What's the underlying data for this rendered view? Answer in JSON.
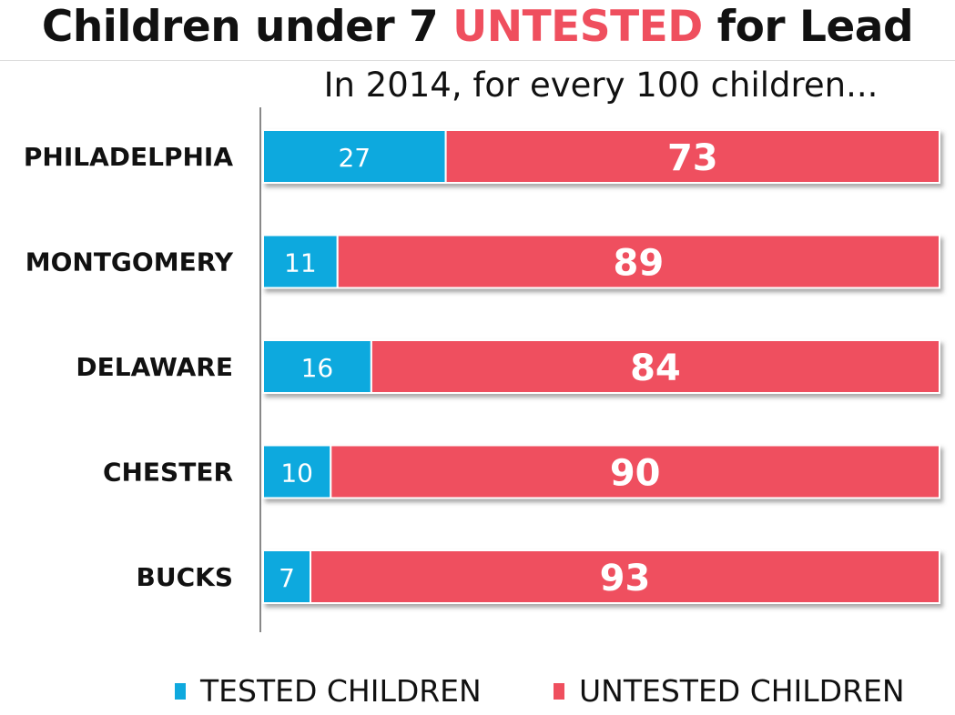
{
  "title": {
    "pre": "Children under 7 ",
    "highlight": "UNTESTED",
    "post": " for Lead"
  },
  "subtitle": "In 2014, for every 100 children...",
  "colors": {
    "tested": "#0fa9de",
    "untested": "#ef4f5e"
  },
  "chart_data": {
    "type": "bar",
    "orientation": "horizontal",
    "stacked": true,
    "title": "Children under 7 UNTESTED for Lead",
    "subtitle": "In 2014, for every 100 children...",
    "categories": [
      "PHILADELPHIA",
      "MONTGOMERY",
      "DELAWARE",
      "CHESTER",
      "BUCKS"
    ],
    "series": [
      {
        "name": "TESTED CHILDREN",
        "values": [
          27,
          11,
          16,
          10,
          7
        ]
      },
      {
        "name": "UNTESTED CHILDREN",
        "values": [
          73,
          89,
          84,
          90,
          93
        ]
      }
    ],
    "xlim": [
      0,
      100
    ],
    "xlabel": "",
    "ylabel": "",
    "grid": false,
    "legend": "bottom"
  }
}
